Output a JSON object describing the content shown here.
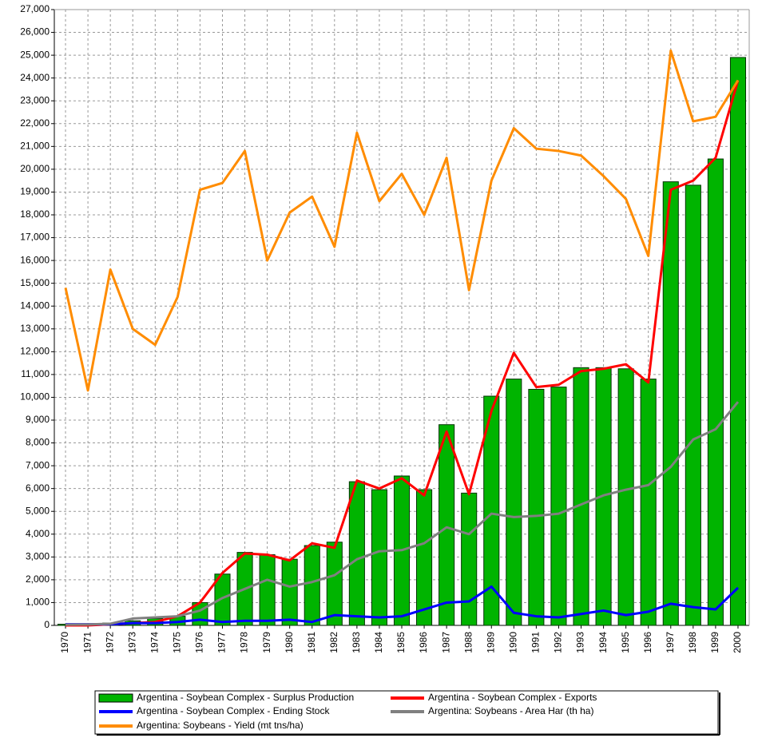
{
  "chart_data": {
    "type": "bar",
    "categories": [
      "1970",
      "1971",
      "1972",
      "1973",
      "1974",
      "1975",
      "1976",
      "1977",
      "1978",
      "1979",
      "1980",
      "1981",
      "1982",
      "1983",
      "1984",
      "1985",
      "1986",
      "1987",
      "1988",
      "1989",
      "1990",
      "1991",
      "1992",
      "1993",
      "1994",
      "1995",
      "1996",
      "1997",
      "1998",
      "1999",
      "2000"
    ],
    "series": [
      {
        "name": "Argentina - Soybean Complex - Surplus Production",
        "type": "bar",
        "color": "#00b400",
        "values": [
          50,
          50,
          100,
          200,
          300,
          400,
          1000,
          2250,
          3200,
          3100,
          2900,
          3500,
          3650,
          6300,
          5950,
          6550,
          5950,
          8800,
          5800,
          10050,
          10800,
          10350,
          10450,
          11300,
          11300,
          11250,
          10800,
          19450,
          19300,
          20450,
          24900
        ]
      },
      {
        "name": "Argentina - Soybean Complex - Exports",
        "type": "line",
        "color": "#ff0000",
        "values": [
          0,
          0,
          50,
          100,
          150,
          400,
          1000,
          2300,
          3150,
          3100,
          2850,
          3600,
          3400,
          6350,
          6000,
          6450,
          5700,
          8500,
          5750,
          9400,
          11950,
          10450,
          10550,
          11150,
          11250,
          11450,
          10650,
          19100,
          19500,
          20500,
          23900
        ]
      },
      {
        "name": "Argentina - Soybean Complex - Ending Stock",
        "type": "line",
        "color": "#0000ff",
        "values": [
          50,
          50,
          50,
          100,
          100,
          150,
          250,
          150,
          200,
          200,
          250,
          150,
          450,
          400,
          350,
          400,
          700,
          1000,
          1050,
          1700,
          550,
          400,
          350,
          500,
          650,
          450,
          600,
          950,
          800,
          700,
          1650
        ]
      },
      {
        "name": "Argentina: Soybeans - Area Har (th ha)",
        "type": "line",
        "color": "#808080",
        "values": [
          30,
          40,
          70,
          300,
          350,
          400,
          650,
          1200,
          1600,
          2000,
          1700,
          1900,
          2200,
          2900,
          3250,
          3300,
          3600,
          4300,
          4000,
          4900,
          4750,
          4800,
          4900,
          5300,
          5700,
          5950,
          6150,
          6950,
          8150,
          8600,
          9800
        ]
      },
      {
        "name": "Argentina: Soybeans - Yield (mt tns/ha)",
        "type": "line",
        "color": "#ff8c00",
        "values": [
          14800,
          10300,
          15600,
          13000,
          12300,
          14400,
          19100,
          19400,
          20800,
          16000,
          18100,
          18800,
          16600,
          21600,
          18600,
          19800,
          18000,
          20500,
          14700,
          19500,
          21800,
          20900,
          20800,
          20600,
          19700,
          18700,
          16200,
          25200,
          22100,
          22300,
          23900
        ]
      }
    ],
    "ylim": [
      0,
      27000
    ],
    "yticks": [
      0,
      {
        "value": 1000,
        "label": "1,000"
      },
      {
        "value": 2000,
        "label": "2,000"
      },
      {
        "value": 3000,
        "label": "3,000"
      },
      {
        "value": 4000,
        "label": "4,000"
      },
      {
        "value": 5000,
        "label": "5,000"
      },
      {
        "value": 6000,
        "label": "6,000"
      },
      {
        "value": 7000,
        "label": "7,000"
      },
      {
        "value": 8000,
        "label": "8,000"
      },
      {
        "value": 9000,
        "label": "9,000"
      },
      {
        "value": 10000,
        "label": "10,000"
      },
      {
        "value": 11000,
        "label": "11,000"
      },
      {
        "value": 12000,
        "label": "12,000"
      },
      {
        "value": 13000,
        "label": "13,000"
      },
      {
        "value": 14000,
        "label": "14,000"
      },
      {
        "value": 15000,
        "label": "15,000"
      },
      {
        "value": 16000,
        "label": "16,000"
      },
      {
        "value": 17000,
        "label": "17,000"
      },
      {
        "value": 18000,
        "label": "18,000"
      },
      {
        "value": 19000,
        "label": "19,000"
      },
      {
        "value": 20000,
        "label": "20,000"
      },
      {
        "value": 21000,
        "label": "21,000"
      },
      {
        "value": 22000,
        "label": "22,000"
      },
      {
        "value": 23000,
        "label": "23,000"
      },
      {
        "value": 24000,
        "label": "24,000"
      },
      {
        "value": 25000,
        "label": "25,000"
      },
      {
        "value": 26000,
        "label": "26,000"
      },
      {
        "value": 27000,
        "label": "27,000"
      }
    ],
    "grid": true
  }
}
